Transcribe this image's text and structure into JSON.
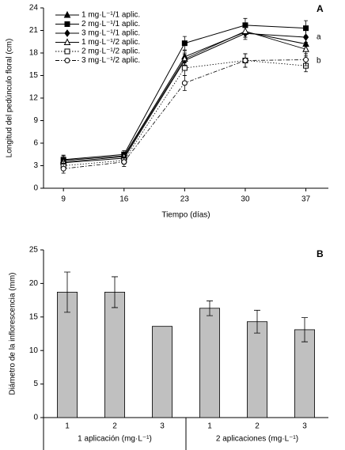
{
  "chart_data": [
    {
      "type": "line",
      "panel": "A",
      "x_label": "Tiempo (días)",
      "y_label": "Longitud del pedúnculo floral (cm)",
      "x": [
        9,
        16,
        23,
        30,
        37
      ],
      "xlim": [
        6.7,
        39.6
      ],
      "xticks": [
        9,
        16,
        23,
        30,
        37
      ],
      "ylim": [
        0,
        24
      ],
      "yticks": [
        0,
        3,
        6,
        9,
        12,
        15,
        18,
        21,
        24
      ],
      "annotations": [
        "a",
        "b"
      ],
      "series": [
        {
          "name": "1 mg·L⁻¹/1 aplic.",
          "color": "#000000",
          "marker": "triangle",
          "filled": true,
          "line_style": "solid",
          "values": [
            3.7,
            4.3,
            17.5,
            20.8,
            19.2
          ],
          "errors": [
            0.6,
            0.5,
            0.8,
            0.7,
            0.9
          ]
        },
        {
          "name": "2 mg·L⁻¹/1 aplic.",
          "color": "#000000",
          "marker": "square",
          "filled": true,
          "line_style": "solid",
          "values": [
            3.8,
            4.5,
            19.3,
            21.7,
            21.3
          ],
          "errors": [
            0.6,
            0.5,
            0.9,
            0.9,
            1.0
          ]
        },
        {
          "name": "3 mg·L⁻¹/1 aplic.",
          "color": "#000000",
          "marker": "diamond",
          "filled": true,
          "line_style": "solid",
          "values": [
            3.4,
            4.0,
            17.0,
            20.6,
            20.1
          ],
          "errors": [
            0.5,
            0.5,
            0.8,
            0.8,
            0.9
          ]
        },
        {
          "name": "1 mg·L⁻¹/2 aplic.",
          "color": "#000000",
          "marker": "triangle",
          "filled": false,
          "line_style": "solid",
          "values": [
            3.5,
            4.2,
            17.2,
            20.9,
            18.5
          ],
          "errors": [
            0.5,
            0.5,
            0.8,
            0.8,
            0.9
          ]
        },
        {
          "name": "2 mg·L⁻¹/2 aplic.",
          "color": "#000000",
          "marker": "square",
          "filled": false,
          "line_style": "dotted",
          "values": [
            3.0,
            3.7,
            16.0,
            17.0,
            16.3
          ],
          "errors": [
            0.6,
            0.5,
            1.0,
            0.9,
            0.8
          ]
        },
        {
          "name": "3 mg·L⁻¹/2 aplic.",
          "color": "#000000",
          "marker": "circle",
          "filled": false,
          "line_style": "dashdot",
          "values": [
            2.6,
            3.5,
            14.0,
            17.0,
            17.1
          ],
          "errors": [
            0.6,
            0.6,
            1.0,
            0.9,
            0.8
          ]
        }
      ]
    },
    {
      "type": "bar",
      "panel": "B",
      "y_label": "Diámetro de la inflorescencia (mm)",
      "categories": [
        "1",
        "2",
        "3",
        "1",
        "2",
        "3"
      ],
      "groups": [
        "1 aplicación (mg·L⁻¹)",
        "2 aplicaciones (mg·L⁻¹)"
      ],
      "values": [
        18.7,
        18.7,
        13.6,
        16.3,
        14.3,
        13.1
      ],
      "errors": [
        3.0,
        2.3,
        null,
        1.1,
        1.7,
        1.8
      ],
      "color": "#c0c0c0",
      "ylim": [
        0,
        25
      ],
      "yticks": [
        0,
        5,
        10,
        15,
        20,
        25
      ]
    }
  ]
}
